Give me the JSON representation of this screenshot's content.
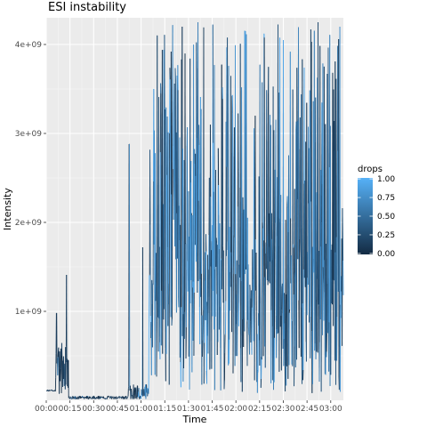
{
  "chart_data": {
    "type": "line",
    "title": "ESI instability",
    "xlabel": "Time",
    "ylabel": "Intensity",
    "x_tick_labels": [
      "00:00",
      "00:15",
      "00:30",
      "00:45",
      "01:00",
      "01:15",
      "01:30",
      "01:45",
      "02:00",
      "02:15",
      "02:30",
      "02:45",
      "03:00"
    ],
    "x_tick_minutes": [
      0,
      15,
      30,
      45,
      60,
      75,
      90,
      105,
      120,
      135,
      150,
      165,
      180
    ],
    "xlim_minutes": [
      0,
      188
    ],
    "y_tick_labels": [
      "1e+09",
      "2e+09",
      "3e+09",
      "4e+09"
    ],
    "y_tick_values": [
      1000000000,
      2000000000,
      3000000000,
      4000000000
    ],
    "ylim": [
      0,
      4300000000
    ],
    "color_variable": "drops",
    "color_scale": {
      "low": "#132B43",
      "high": "#56B1F7",
      "range": [
        0,
        1
      ]
    },
    "legend": {
      "title": "drops",
      "labels": [
        "1.00",
        "0.75",
        "0.50",
        "0.25",
        "0.00"
      ],
      "values": [
        1.0,
        0.75,
        0.5,
        0.25,
        0.0
      ],
      "position": "right"
    },
    "series_description_segments": [
      {
        "from_minute": 0,
        "to_minute": 6,
        "level": 0.11,
        "spread": 0.01
      },
      {
        "from_minute": 6,
        "to_minute": 14,
        "level": 0.35,
        "spread": 0.3,
        "spikes": [
          [
            6.5,
            0.98
          ],
          [
            12.8,
            1.41
          ]
        ]
      },
      {
        "from_minute": 14,
        "to_minute": 52,
        "level": 0.03,
        "spread": 0.02
      },
      {
        "from_minute": 52,
        "to_minute": 65,
        "level": 0.08,
        "spread": 0.1,
        "spikes": [
          [
            52.5,
            2.88
          ],
          [
            61,
            1.72
          ]
        ]
      },
      {
        "from_minute": 65,
        "to_minute": 120,
        "level": 1.5,
        "spread": 1.6,
        "spikes": [
          [
            68,
            3.5
          ],
          [
            75,
            3.15
          ],
          [
            86,
            4.2
          ],
          [
            96,
            4.25
          ]
        ]
      },
      {
        "from_minute": 120,
        "to_minute": 188,
        "level": 2.0,
        "spread": 2.0,
        "spikes": [
          [
            126,
            4.15
          ],
          [
            150,
            4.05
          ],
          [
            172,
            4.25
          ]
        ]
      }
    ]
  },
  "colors": {
    "panel_bg": "#EBEBEB",
    "grid_major": "#FFFFFF",
    "low": "#132B43",
    "high": "#56B1F7"
  }
}
